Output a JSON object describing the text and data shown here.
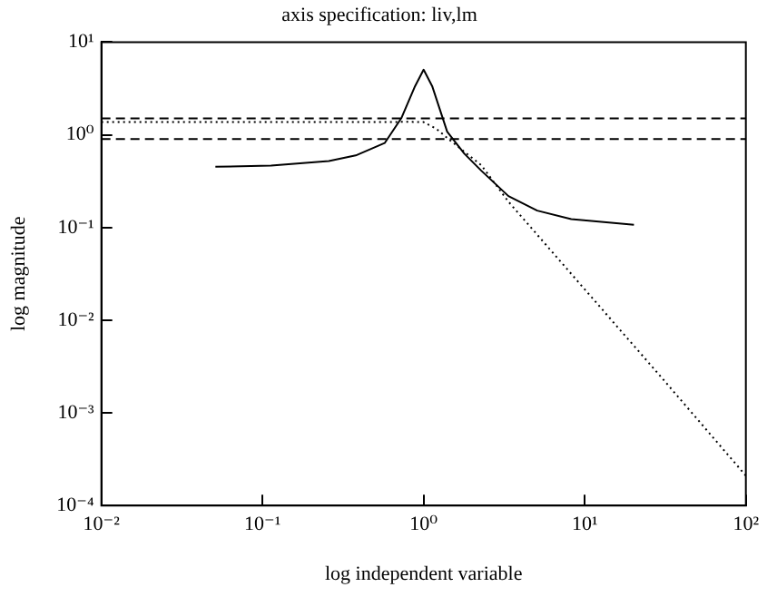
{
  "chart_data": {
    "type": "line",
    "title": "axis specification: liv,lm",
    "xlabel": "log independent variable",
    "ylabel": "log magnitude",
    "log": "xy",
    "grid": false,
    "legend": false,
    "marker": "none",
    "xlim": [
      0.01,
      100
    ],
    "ylim": [
      0.0001,
      10
    ],
    "xticks": [
      {
        "value": 0.01,
        "label": "10⁻²"
      },
      {
        "value": 0.1,
        "label": "10⁻¹"
      },
      {
        "value": 1,
        "label": "10⁰"
      },
      {
        "value": 10,
        "label": "10¹"
      },
      {
        "value": 100,
        "label": "10²"
      }
    ],
    "yticks": [
      {
        "value": 0.0001,
        "label": "10⁻⁴"
      },
      {
        "value": 0.001,
        "label": "10⁻³"
      },
      {
        "value": 0.01,
        "label": "10⁻²"
      },
      {
        "value": 0.1,
        "label": "10⁻¹"
      },
      {
        "value": 1,
        "label": "10⁰"
      },
      {
        "value": 10,
        "label": "10¹"
      }
    ],
    "series": [
      {
        "color": "#000000",
        "line_style": "solid",
        "x": [
          0.051,
          0.113,
          0.258,
          0.379,
          0.573,
          0.73,
          0.885,
          1.0,
          1.13,
          1.4,
          1.79,
          2.28,
          3.36,
          5.07,
          8.24,
          20.2
        ],
        "values": [
          0.452,
          0.466,
          0.521,
          0.599,
          0.814,
          1.53,
          3.35,
          5.04,
          3.35,
          1.08,
          0.625,
          0.41,
          0.218,
          0.152,
          0.123,
          0.107
        ]
      },
      {
        "color": "#000000",
        "line_style": "dotted",
        "x": [
          0.01,
          0.1,
          0.5,
          0.8,
          1.0,
          1.2,
          1.46,
          2.28,
          3.36,
          10,
          30,
          100
        ],
        "values": [
          1.37,
          1.37,
          1.37,
          1.38,
          1.37,
          1.16,
          0.87,
          0.47,
          0.19,
          0.0215,
          0.0024,
          0.00021
        ]
      }
    ],
    "ref_lines": [
      {
        "axis": "y",
        "value": 1.5,
        "line_style": "dashed",
        "color": "#000000"
      },
      {
        "axis": "y",
        "value": 0.9,
        "line_style": "dashed",
        "color": "#000000"
      }
    ]
  }
}
